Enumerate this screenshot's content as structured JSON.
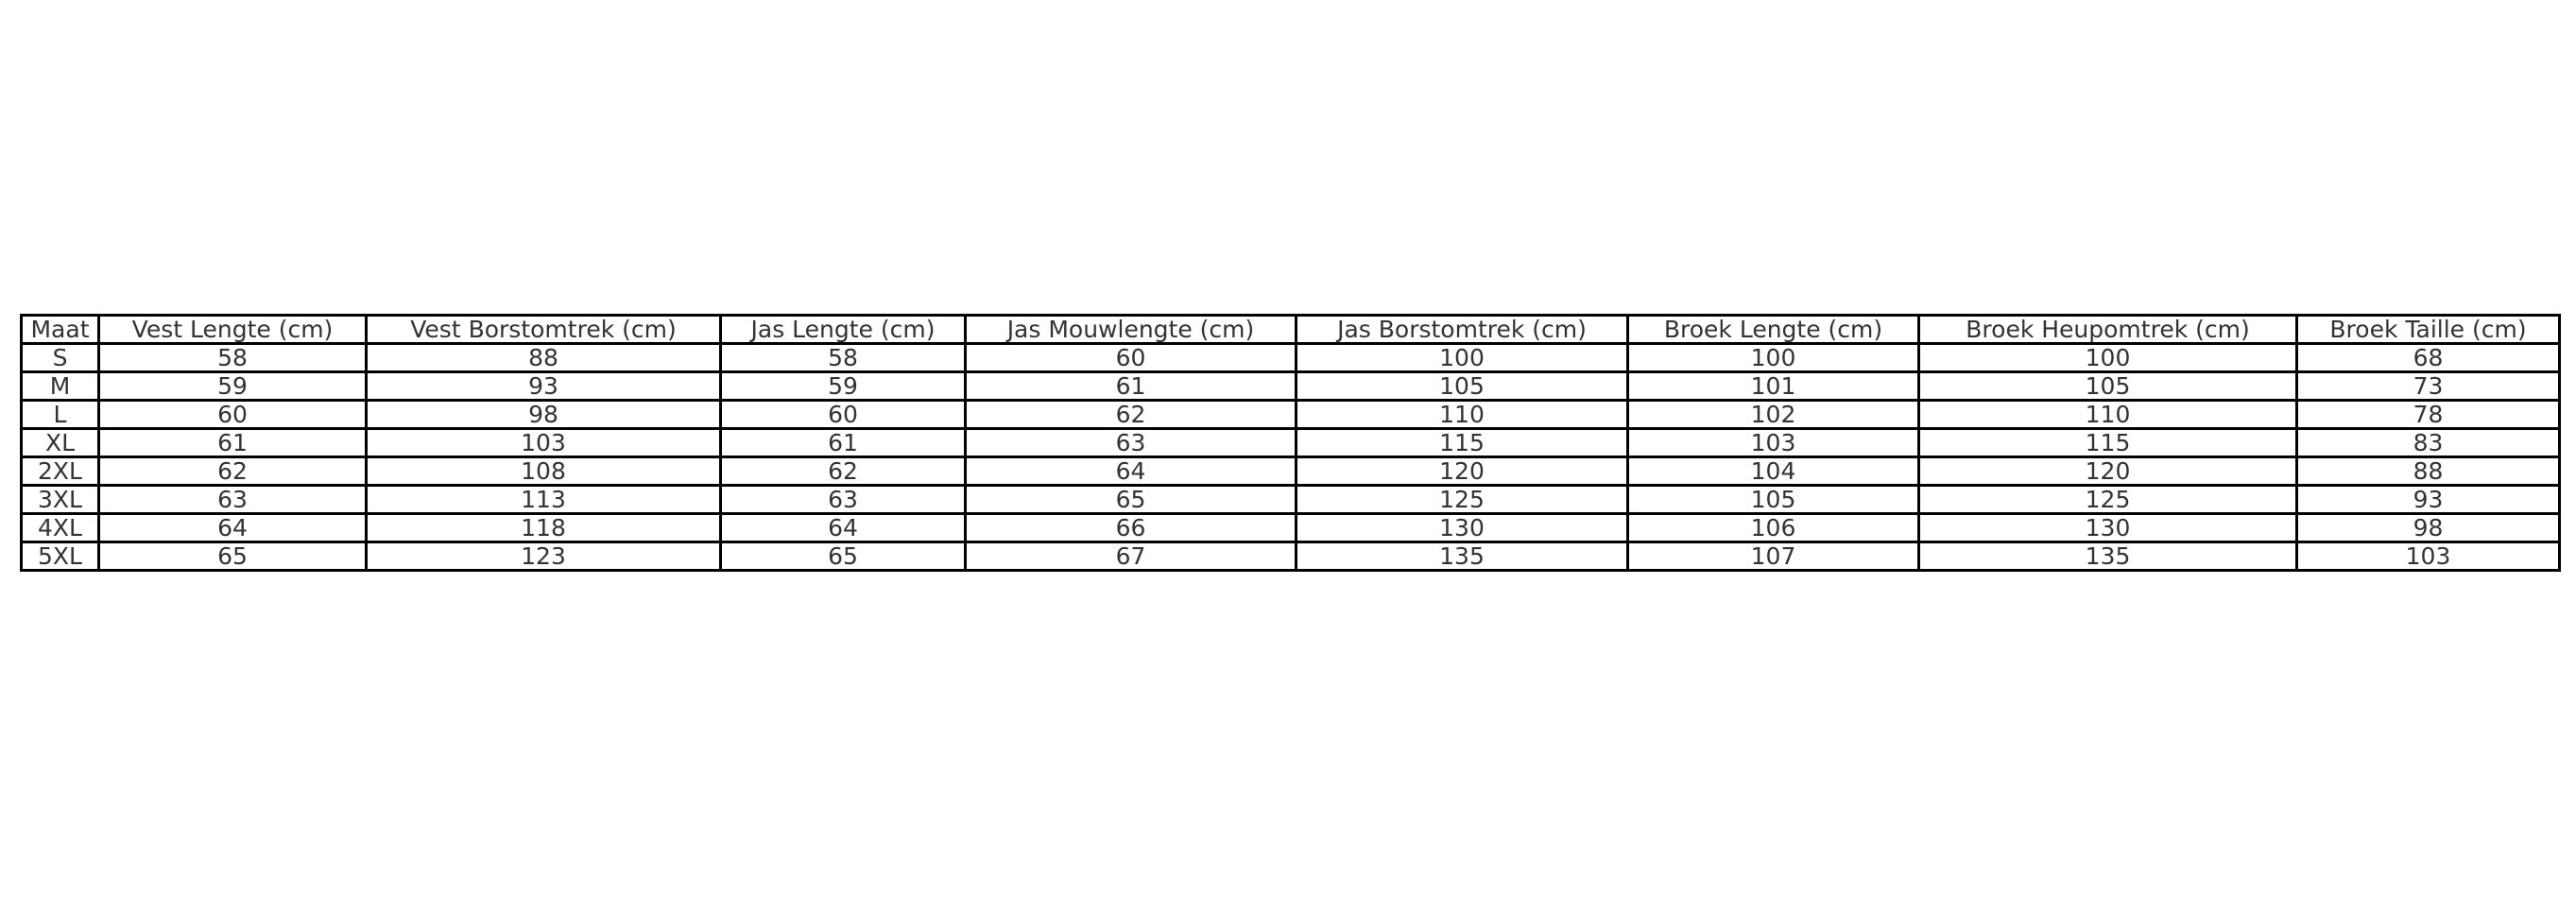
{
  "table": {
    "headers": [
      "Maat",
      "Vest Lengte (cm)",
      "Vest Borstomtrek (cm)",
      "Jas Lengte (cm)",
      "Jas Mouwlengte (cm)",
      "Jas Borstomtrek (cm)",
      "Broek Lengte (cm)",
      "Broek Heupomtrek (cm)",
      "Broek Taille (cm)"
    ],
    "rows": [
      [
        "S",
        "58",
        "88",
        "58",
        "60",
        "100",
        "100",
        "100",
        "68"
      ],
      [
        "M",
        "59",
        "93",
        "59",
        "61",
        "105",
        "101",
        "105",
        "73"
      ],
      [
        "L",
        "60",
        "98",
        "60",
        "62",
        "110",
        "102",
        "110",
        "78"
      ],
      [
        "XL",
        "61",
        "103",
        "61",
        "63",
        "115",
        "103",
        "115",
        "83"
      ],
      [
        "2XL",
        "62",
        "108",
        "62",
        "64",
        "120",
        "104",
        "120",
        "88"
      ],
      [
        "3XL",
        "63",
        "113",
        "63",
        "65",
        "125",
        "105",
        "125",
        "93"
      ],
      [
        "4XL",
        "64",
        "118",
        "64",
        "66",
        "130",
        "106",
        "130",
        "98"
      ],
      [
        "5XL",
        "65",
        "123",
        "65",
        "67",
        "135",
        "107",
        "135",
        "103"
      ]
    ]
  }
}
